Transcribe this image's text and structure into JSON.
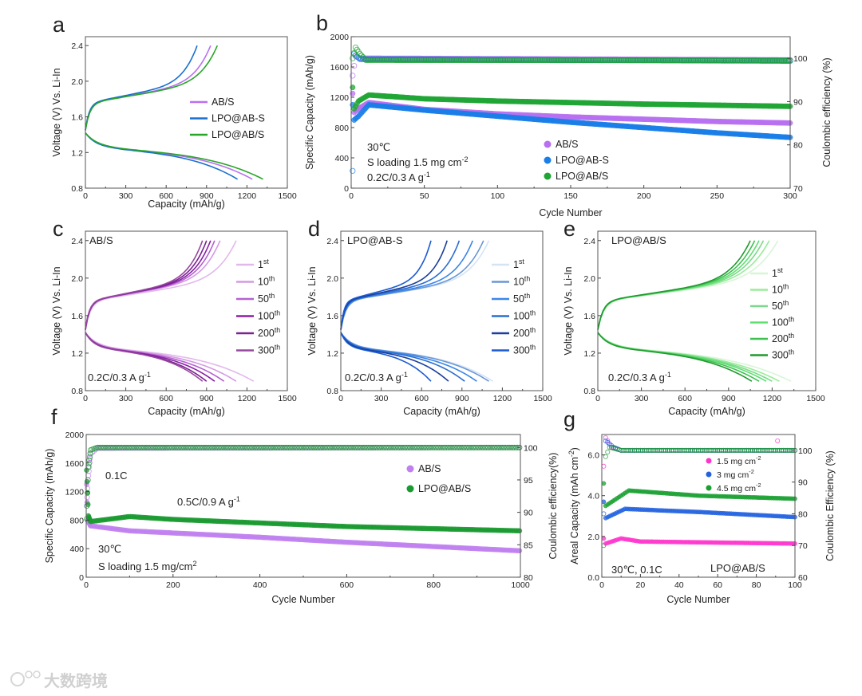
{
  "watermark": "大数跨境",
  "colors": {
    "abs": "#b870f0",
    "lpo_ab_s": "#1a7ee8",
    "lpo_abs": "#1fa534",
    "mag": "#ff33cc",
    "blue3": "#2262e0",
    "green45": "#18a030"
  },
  "chart_data": [
    {
      "id": "a",
      "letter": "a",
      "type": "line",
      "xlabel": "Capacity (mAh/g)",
      "ylabel": "Voltage (V) Vs. Li-In",
      "xlim": [
        0,
        1500
      ],
      "ylim": [
        0.8,
        2.5
      ],
      "xticks": [
        "0",
        "300",
        "600",
        "900",
        "1200",
        "1500"
      ],
      "yticks": [
        "0.8",
        "1.2",
        "1.6",
        "2.0",
        "2.4"
      ],
      "series": [
        {
          "name": "AB/S",
          "color": "#b870f0",
          "charge": 930,
          "discharge": 1240
        },
        {
          "name": "LPO@AB-S",
          "color": "#1a6fd0",
          "charge": 830,
          "discharge": 1130
        },
        {
          "name": "LPO@AB/S",
          "color": "#2aa52a",
          "charge": 980,
          "discharge": 1320
        }
      ]
    },
    {
      "id": "b",
      "letter": "b",
      "type": "scatter",
      "xlabel": "Cycle Number",
      "ylabel": "Specific Capacity (mAh/g)",
      "y2label": "Coulombic efficiency (%)",
      "xlim": [
        0,
        300
      ],
      "ylim": [
        0,
        2000
      ],
      "y2lim": [
        70,
        105
      ],
      "xticks": [
        "0",
        "50",
        "100",
        "150",
        "200",
        "250",
        "300"
      ],
      "yticks": [
        "0",
        "400",
        "800",
        "1200",
        "1600",
        "2000"
      ],
      "y2ticks": [
        "70",
        "80",
        "90",
        "100"
      ],
      "annotations": [
        {
          "text": "30℃"
        },
        {
          "text": "S loading 1.5 mg cm",
          "sup": "-2"
        },
        {
          "text": "0.2C/0.3 A g",
          "sup": "-1"
        }
      ],
      "series": [
        {
          "name": "AB/S",
          "color": "#b870f0",
          "capacity": [
            [
              1,
              1250
            ],
            [
              2,
              1000
            ],
            [
              5,
              1050
            ],
            [
              12,
              1130
            ],
            [
              50,
              1040
            ],
            [
              100,
              980
            ],
            [
              150,
              940
            ],
            [
              200,
              910
            ],
            [
              250,
              880
            ],
            [
              300,
              860
            ]
          ],
          "ce": [
            [
              1,
              96
            ],
            [
              3,
              100.5
            ],
            [
              6,
              100
            ],
            [
              300,
              99.6
            ]
          ]
        },
        {
          "name": "LPO@AB-S",
          "color": "#1a7ee8",
          "capacity": [
            [
              1,
              1100
            ],
            [
              2,
              900
            ],
            [
              5,
              950
            ],
            [
              12,
              1100
            ],
            [
              50,
              1030
            ],
            [
              100,
              950
            ],
            [
              150,
              870
            ],
            [
              200,
              800
            ],
            [
              250,
              730
            ],
            [
              300,
              670
            ]
          ],
          "ce": [
            [
              1,
              74
            ],
            [
              2,
              101
            ],
            [
              6,
              99.8
            ],
            [
              300,
              99.4
            ]
          ]
        },
        {
          "name": "LPO@AB/S",
          "color": "#1fa534",
          "capacity": [
            [
              1,
              1330
            ],
            [
              2,
              1050
            ],
            [
              5,
              1150
            ],
            [
              12,
              1230
            ],
            [
              50,
              1180
            ],
            [
              100,
              1150
            ],
            [
              150,
              1130
            ],
            [
              200,
              1110
            ],
            [
              250,
              1095
            ],
            [
              300,
              1080
            ]
          ],
          "ce": [
            [
              1,
              100
            ],
            [
              3,
              102.5
            ],
            [
              6,
              101
            ],
            [
              10,
              99.6
            ],
            [
              300,
              99.5
            ]
          ]
        }
      ]
    },
    {
      "id": "c",
      "letter": "c",
      "type": "line",
      "label": "AB/S",
      "rate": {
        "text": "0.2C/0.3 A g",
        "sup": "-1"
      },
      "xlabel": "Capacity (mAh/g)",
      "ylabel": "Voltage (V) Vs. Li-In",
      "xlim": [
        0,
        1500
      ],
      "ylim": [
        0.8,
        2.5
      ],
      "xticks": [
        "0",
        "300",
        "600",
        "900",
        "1200",
        "1500"
      ],
      "yticks": [
        "0.8",
        "1.2",
        "1.6",
        "2.0",
        "2.4"
      ],
      "series": [
        {
          "name": "1",
          "sup": "st",
          "color": "#e2b8ec",
          "charge": 1120,
          "discharge": 1250
        },
        {
          "name": "10",
          "sup": "th",
          "color": "#d49ae4",
          "charge": 1000,
          "discharge": 1120
        },
        {
          "name": "50",
          "sup": "th",
          "color": "#b462d0",
          "charge": 960,
          "discharge": 1030
        },
        {
          "name": "100",
          "sup": "th",
          "color": "#8a20a8",
          "charge": 930,
          "discharge": 960
        },
        {
          "name": "200",
          "sup": "th",
          "color": "#7a2290",
          "charge": 900,
          "discharge": 900
        },
        {
          "name": "300",
          "sup": "th",
          "color": "#96489e",
          "charge": 870,
          "discharge": 870
        }
      ]
    },
    {
      "id": "d",
      "letter": "d",
      "type": "line",
      "label": "LPO@AB-S",
      "rate": {
        "text": "0.2C/0.3 A g",
        "sup": "-1"
      },
      "xlabel": "Capacity (mAh/g)",
      "ylabel": "Voltage (V) Vs. Li-In",
      "xlim": [
        0,
        1500
      ],
      "ylim": [
        0.8,
        2.5
      ],
      "xticks": [
        "0",
        "300",
        "600",
        "900",
        "1200",
        "1500"
      ],
      "yticks": [
        "0.8",
        "1.2",
        "1.6",
        "2.0",
        "2.4"
      ],
      "series": [
        {
          "name": "1",
          "sup": "st",
          "color": "#d4e4f6",
          "charge": 1100,
          "discharge": 1130
        },
        {
          "name": "10",
          "sup": "th",
          "color": "#6a96d6",
          "charge": 1060,
          "discharge": 1100
        },
        {
          "name": "50",
          "sup": "th",
          "color": "#3a86e8",
          "charge": 980,
          "discharge": 1010
        },
        {
          "name": "100",
          "sup": "th",
          "color": "#2a6ed0",
          "charge": 880,
          "discharge": 920
        },
        {
          "name": "200",
          "sup": "th",
          "color": "#1a3e9a",
          "charge": 790,
          "discharge": 800
        },
        {
          "name": "300",
          "sup": "th",
          "color": "#1a5ad0",
          "charge": 670,
          "discharge": 670
        }
      ]
    },
    {
      "id": "e",
      "letter": "e",
      "type": "line",
      "label": "LPO@AB/S",
      "rate": {
        "text": "0.2C/0.3 A g",
        "sup": "-1"
      },
      "xlabel": "Capacity (mAh/g)",
      "ylabel": "Voltage (V) Vs. Li-In",
      "xlim": [
        0,
        1500
      ],
      "ylim": [
        0.8,
        2.5
      ],
      "xticks": [
        "0",
        "300",
        "600",
        "900",
        "1200",
        "1500"
      ],
      "yticks": [
        "0.8",
        "1.2",
        "1.6",
        "2.0",
        "2.4"
      ],
      "series": [
        {
          "name": "1",
          "sup": "st",
          "color": "#d8f5d8",
          "charge": 1240,
          "discharge": 1330
        },
        {
          "name": "10",
          "sup": "th",
          "color": "#98ec98",
          "charge": 1180,
          "discharge": 1250
        },
        {
          "name": "50",
          "sup": "th",
          "color": "#7cd88c",
          "charge": 1140,
          "discharge": 1200
        },
        {
          "name": "100",
          "sup": "th",
          "color": "#5ee070",
          "charge": 1110,
          "discharge": 1160
        },
        {
          "name": "200",
          "sup": "th",
          "color": "#40c050",
          "charge": 1080,
          "discharge": 1110
        },
        {
          "name": "300",
          "sup": "th",
          "color": "#1e9a2e",
          "charge": 1050,
          "discharge": 1060
        }
      ]
    },
    {
      "id": "f",
      "letter": "f",
      "type": "scatter",
      "xlabel": "Cycle Number",
      "ylabel": "Specific Capacity (mAh/g)",
      "y2label": "Coulombic efficiency(%)",
      "xlim": [
        0,
        1000
      ],
      "ylim": [
        0,
        2000
      ],
      "y2lim": [
        80,
        102
      ],
      "xticks": [
        "0",
        "200",
        "400",
        "600",
        "800",
        "1000"
      ],
      "yticks": [
        "0",
        "400",
        "800",
        "1200",
        "1600",
        "2000"
      ],
      "y2ticks": [
        "80",
        "85",
        "90",
        "95",
        "100"
      ],
      "annotations": [
        {
          "text": "0.1C"
        },
        {
          "text": "0.5C/0.9 A g",
          "sup": "-1"
        },
        {
          "text": "30℃"
        },
        {
          "text": "S loading 1.5 mg/cm",
          "sup": "2"
        }
      ],
      "series": [
        {
          "name": "AB/S",
          "color": "#c080f0",
          "capacity": [
            [
              1,
              1300
            ],
            [
              3,
              800
            ],
            [
              10,
              720
            ],
            [
              100,
              650
            ],
            [
              400,
              560
            ],
            [
              600,
              490
            ],
            [
              800,
              430
            ],
            [
              1000,
              370
            ]
          ],
          "ce": [
            [
              1,
              91
            ],
            [
              4,
              95
            ],
            [
              10,
              99
            ],
            [
              25,
              99.9
            ],
            [
              1000,
              100
            ]
          ]
        },
        {
          "name": "LPO@AB/S",
          "color": "#1a9a30",
          "capacity": [
            [
              1,
              1500
            ],
            [
              5,
              860
            ],
            [
              10,
              780
            ],
            [
              100,
              850
            ],
            [
              200,
              810
            ],
            [
              400,
              760
            ],
            [
              600,
              710
            ],
            [
              800,
              680
            ],
            [
              1000,
              650
            ]
          ],
          "ce": [
            [
              1,
              89
            ],
            [
              5,
              97
            ],
            [
              10,
              99.6
            ],
            [
              25,
              100
            ],
            [
              1000,
              100
            ]
          ]
        }
      ]
    },
    {
      "id": "g",
      "letter": "g",
      "type": "scatter",
      "xlabel": "Cycle Number",
      "ylabel": "Areal Capacity (mAh cm",
      "ylabel_sup": "-2",
      "ylabel_end": ")",
      "y2label": "Coulombic Efficiency (%)",
      "xlim": [
        0,
        100
      ],
      "ylim": [
        0,
        7
      ],
      "y2lim": [
        60,
        105
      ],
      "xticks": [
        "0",
        "20",
        "40",
        "60",
        "80",
        "100"
      ],
      "yticks": [
        "0.0",
        "2.0",
        "4.0",
        "6.0"
      ],
      "y2ticks": [
        "60",
        "70",
        "80",
        "90",
        "100"
      ],
      "annotations": [
        {
          "text": "30℃, 0.1C"
        },
        {
          "text": "LPO@AB/S"
        }
      ],
      "series": [
        {
          "name": "1.5 mg cm",
          "sup": "-2",
          "color": "#ff33cc",
          "capacity": [
            [
              1,
              1.9
            ],
            [
              2,
              1.65
            ],
            [
              10,
              1.9
            ],
            [
              20,
              1.75
            ],
            [
              100,
              1.65
            ]
          ],
          "ce": [
            [
              1,
              95
            ],
            [
              2,
              104
            ],
            [
              5,
              101
            ],
            [
              10,
              100
            ],
            [
              90,
              100
            ],
            [
              91,
              103
            ],
            [
              92,
              100
            ],
            [
              100,
              100
            ]
          ]
        },
        {
          "name": "3 mg cm",
          "sup": "-2",
          "color": "#2262e0",
          "capacity": [
            [
              1,
              3.7
            ],
            [
              2,
              2.9
            ],
            [
              12,
              3.35
            ],
            [
              50,
              3.2
            ],
            [
              100,
              2.95
            ]
          ],
          "ce": [
            [
              1,
              80
            ],
            [
              2,
              103
            ],
            [
              6,
              101
            ],
            [
              10,
              100
            ],
            [
              100,
              100
            ]
          ]
        },
        {
          "name": "4.5 mg cm",
          "sup": "-2",
          "color": "#18a030",
          "capacity": [
            [
              1,
              4.6
            ],
            [
              2,
              3.5
            ],
            [
              14,
              4.25
            ],
            [
              50,
              4.0
            ],
            [
              100,
              3.85
            ]
          ],
          "ce": [
            [
              1,
              70
            ],
            [
              2,
              98
            ],
            [
              4,
              101
            ],
            [
              10,
              100
            ],
            [
              100,
              100
            ]
          ]
        }
      ]
    }
  ]
}
